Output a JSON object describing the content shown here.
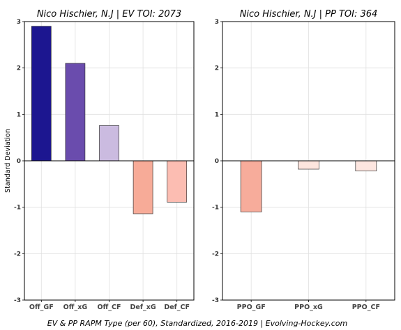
{
  "chart_data": [
    {
      "type": "bar",
      "title": "Nico Hischier, N.J  |  EV TOI: 2073",
      "ylabel": "Standard Deviation",
      "categories": [
        "Off_GF",
        "Off_xG",
        "Off_CF",
        "Def_xG",
        "Def_CF"
      ],
      "values": [
        2.9,
        2.1,
        0.76,
        -1.14,
        -0.89
      ],
      "colors": [
        "#1c1690",
        "#6a4cad",
        "#cbbbe0",
        "#f7ab98",
        "#fcbdb2"
      ],
      "ylim": [
        -3,
        3
      ],
      "yticks": [
        -3,
        -2,
        -1,
        0,
        1,
        2,
        3
      ],
      "grid": true
    },
    {
      "type": "bar",
      "title": "Nico Hischier, N.J  |  PP TOI: 364",
      "ylabel": "",
      "categories": [
        "PPO_GF",
        "PPO_xG",
        "PPO_CF"
      ],
      "values": [
        -1.1,
        -0.18,
        -0.22
      ],
      "colors": [
        "#f7ac9b",
        "#fde5de",
        "#fde6e0"
      ],
      "ylim": [
        -3,
        3
      ],
      "yticks": [
        -3,
        -2,
        -1,
        0,
        1,
        2,
        3
      ],
      "grid": true
    }
  ],
  "caption": "EV & PP RAPM Type (per 60), Standardized, 2016-2019    |    Evolving-Hockey.com"
}
